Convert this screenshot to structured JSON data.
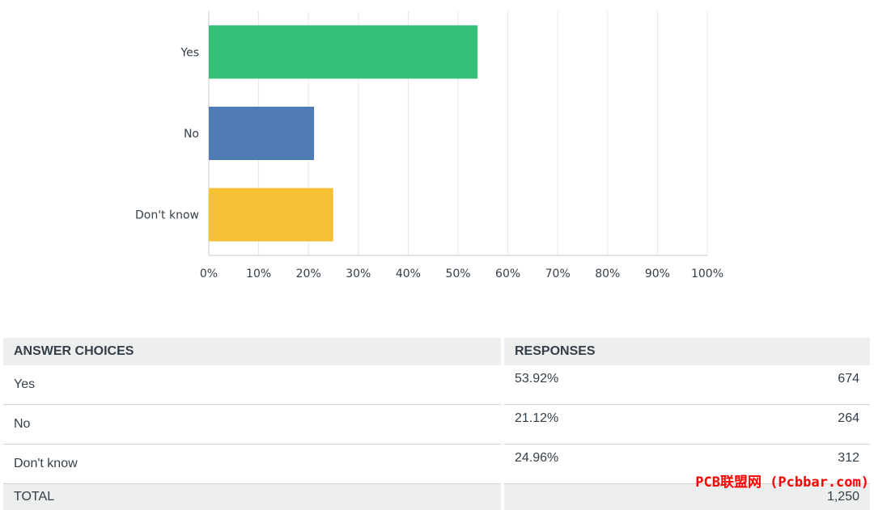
{
  "chart_data": {
    "type": "bar",
    "orientation": "horizontal",
    "categories": [
      "Yes",
      "No",
      "Don't know"
    ],
    "values": [
      53.92,
      21.12,
      24.96
    ],
    "colors": [
      "#36bf78",
      "#507cb6",
      "#f6c035"
    ],
    "xlim": [
      0,
      100
    ],
    "xticks": [
      "0%",
      "10%",
      "20%",
      "30%",
      "40%",
      "50%",
      "60%",
      "70%",
      "80%",
      "90%",
      "100%"
    ],
    "grid": true
  },
  "table": {
    "headers": [
      "ANSWER CHOICES",
      "RESPONSES"
    ],
    "rows": [
      {
        "choice": "Yes",
        "percent": "53.92%",
        "count": "674"
      },
      {
        "choice": "No",
        "percent": "21.12%",
        "count": "264"
      },
      {
        "choice": "Don't know",
        "percent": "24.96%",
        "count": "312"
      }
    ],
    "total_label": "TOTAL",
    "total_count": "1,250"
  },
  "watermark": "PCB联盟网 (Pcbbar.com)"
}
